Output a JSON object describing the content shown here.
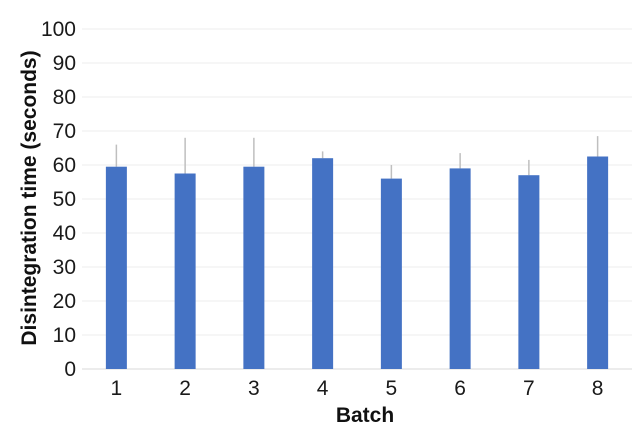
{
  "chart_data": {
    "type": "bar",
    "categories": [
      "1",
      "2",
      "3",
      "4",
      "5",
      "6",
      "7",
      "8"
    ],
    "series": [
      {
        "values": [
          59.5,
          57.5,
          59.5,
          62,
          56,
          59,
          57,
          62.5
        ],
        "error_upper": [
          66,
          68,
          68,
          64,
          60,
          63.5,
          61.5,
          68.5
        ]
      }
    ],
    "xlabel": "Batch",
    "ylabel": "Disintegration time (seconds)",
    "ylim": [
      0,
      100
    ],
    "yticks": [
      "0",
      "10",
      "20",
      "30",
      "40",
      "50",
      "60",
      "70",
      "80",
      "90",
      "100"
    ],
    "grid": true,
    "legend": "none",
    "colors": {
      "bar": "#4472c4",
      "error_bar": "#bfbfbf",
      "grid": "#eeeeee"
    }
  }
}
